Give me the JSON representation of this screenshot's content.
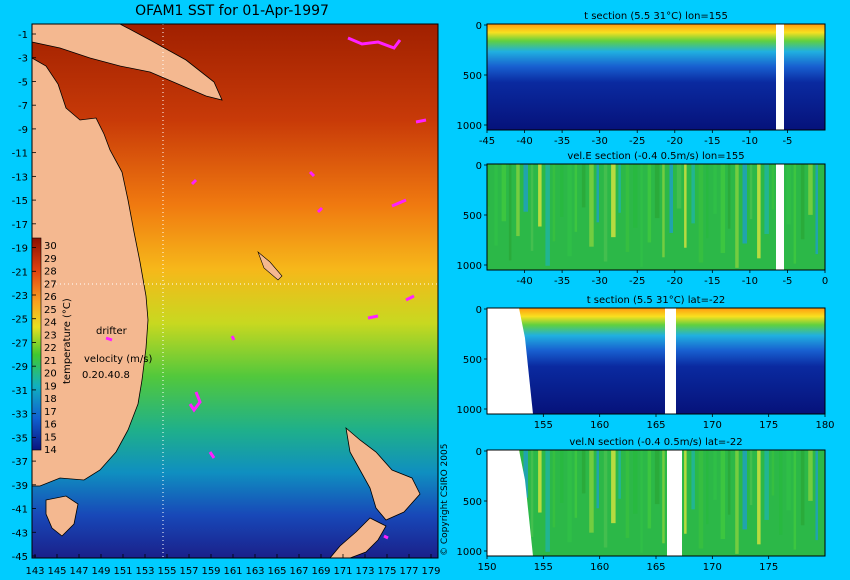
{
  "map": {
    "title": "OFAM1 SST for 01-Apr-1997",
    "colorbar_label": "temperature (°C)",
    "colorbar_values": [
      30,
      29,
      28,
      27,
      26,
      25,
      24,
      23,
      22,
      21,
      20,
      19,
      18,
      17,
      16,
      15,
      14
    ],
    "drifter_label": "drifter",
    "velocity_label": "velocity (m/s)",
    "velocity_scale": [
      "0.2",
      "0.4",
      "0.8"
    ],
    "copyright": "© Copyright CSIRO 2005",
    "lat_ticks": [
      "-1",
      "-3",
      "-5",
      "-7",
      "-9",
      "-11",
      "-13",
      "-15",
      "-17",
      "-19",
      "-21",
      "-23",
      "-25",
      "-27",
      "-29",
      "-31",
      "-33",
      "-35",
      "-37",
      "-39",
      "-41",
      "-43",
      "-45"
    ],
    "lon_ticks": [
      "143",
      "145",
      "147",
      "149",
      "151",
      "153",
      "155",
      "157",
      "159",
      "161",
      "163",
      "165",
      "167",
      "169",
      "171",
      "173",
      "175",
      "177",
      "179"
    ]
  },
  "chart_data": [
    {
      "type": "heatmap",
      "title": "t section (5.5      31°C) lon=155",
      "x_ticks": [
        "-45",
        "-40",
        "-35",
        "-30",
        "-25",
        "-20",
        "-15",
        "-10",
        "-5"
      ],
      "y_ticks": [
        "0",
        "500",
        "1000"
      ],
      "xlim": [
        -45,
        0
      ],
      "ylim": [
        1000,
        0
      ]
    },
    {
      "type": "heatmap",
      "title": "vel.E section (-0.4      0.5m/s) lon=155",
      "x_ticks": [
        "-40",
        "-35",
        "-30",
        "-25",
        "-20",
        "-15",
        "-10",
        "-5",
        "0"
      ],
      "y_ticks": [
        "0",
        "500",
        "1000"
      ],
      "xlim": [
        -45,
        0
      ],
      "ylim": [
        1000,
        0
      ]
    },
    {
      "type": "heatmap",
      "title": "t section (5.5      31°C) lat=-22",
      "x_ticks": [
        "155",
        "160",
        "165",
        "170",
        "175",
        "180"
      ],
      "y_ticks": [
        "0",
        "500",
        "1000"
      ],
      "xlim": [
        150,
        180
      ],
      "ylim": [
        1000,
        0
      ]
    },
    {
      "type": "heatmap",
      "title": "vel.N section (-0.4      0.5m/s) lat=-22",
      "x_ticks": [
        "150",
        "155",
        "160",
        "165",
        "170",
        "175"
      ],
      "y_ticks": [
        "0",
        "500",
        "1000"
      ],
      "xlim": [
        150,
        180
      ],
      "ylim": [
        1000,
        0
      ]
    }
  ]
}
